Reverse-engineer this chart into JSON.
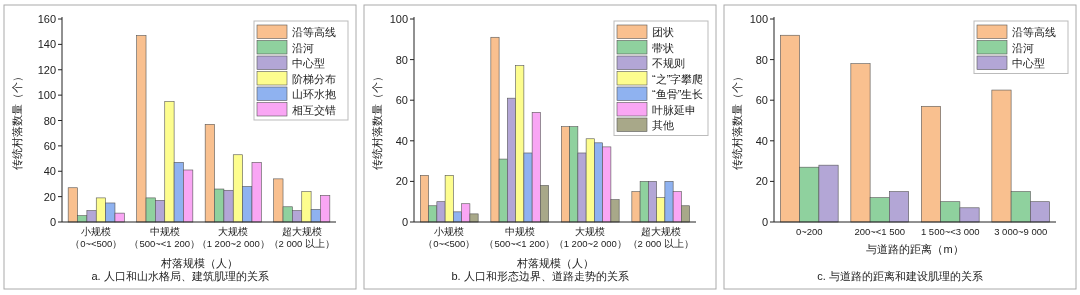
{
  "chart_data": [
    {
      "type": "bar",
      "ylabel": "传统村落数量（个）",
      "xlabel": "村落规模（人）",
      "annotations": [
        "a. 人口和山水格局、建筑肌理的关系"
      ],
      "categories": [
        "小规模（0~<500）",
        "中规模（500~<1 200）",
        "大规模（1 200~2 000）",
        "超大规模（2 000 以上）"
      ],
      "ylim": [
        0,
        160
      ],
      "yticks": [
        0,
        20,
        40,
        60,
        80,
        100,
        120,
        140,
        160
      ],
      "grid": false,
      "legend": "top right",
      "series": [
        {
          "name": "沿等高线",
          "color": "#f9c08f",
          "values": [
            27,
            147,
            77,
            34
          ]
        },
        {
          "name": "沿河",
          "color": "#8fd19e",
          "values": [
            5,
            19,
            26,
            12
          ]
        },
        {
          "name": "中心型",
          "color": "#b3a6d6",
          "values": [
            9,
            17,
            25,
            9
          ]
        },
        {
          "name": "阶梯分布",
          "color": "#fdfd8e",
          "values": [
            19,
            95,
            53,
            24
          ]
        },
        {
          "name": "山环水抱",
          "color": "#8fb2f0",
          "values": [
            15,
            47,
            28,
            10
          ]
        },
        {
          "name": "相互交错",
          "color": "#f9a6f4",
          "values": [
            7,
            41,
            47,
            21
          ]
        }
      ]
    },
    {
      "type": "bar",
      "ylabel": "传统村落数量（个）",
      "xlabel": "村落规模（人）",
      "annotations": [
        "b. 人口和形态边界、道路走势的关系"
      ],
      "categories": [
        "小规模（0~<500）",
        "中规模（500~<1 200）",
        "大规模（1 200~2 000）",
        "超大规模（2 000 以上）"
      ],
      "ylim": [
        0,
        100
      ],
      "yticks": [
        0,
        20,
        40,
        60,
        80,
        100
      ],
      "grid": false,
      "legend": "top right",
      "series": [
        {
          "name": "团状",
          "color": "#f9c08f",
          "values": [
            23,
            91,
            47,
            15
          ]
        },
        {
          "name": "带状",
          "color": "#8fd19e",
          "values": [
            8,
            31,
            47,
            20
          ]
        },
        {
          "name": "不规则",
          "color": "#b3a6d6",
          "values": [
            10,
            61,
            34,
            20
          ]
        },
        {
          "name": "“之”字攀爬",
          "color": "#fdfd8e",
          "values": [
            23,
            77,
            41,
            12
          ]
        },
        {
          "name": "“鱼骨”生长",
          "color": "#8fb2f0",
          "values": [
            5,
            34,
            39,
            20
          ]
        },
        {
          "name": "叶脉延申",
          "color": "#f9a6f4",
          "values": [
            9,
            54,
            37,
            15
          ]
        },
        {
          "name": "其他",
          "color": "#a8a889",
          "values": [
            4,
            18,
            11,
            8
          ]
        }
      ]
    },
    {
      "type": "bar",
      "ylabel": "传统村落数量（个）",
      "xlabel": "与道路的距离（m）",
      "annotations": [
        "c. 与道路的距离和建设肌理的关系"
      ],
      "categories": [
        "0~200",
        "200~<1 500",
        "1 500~<3 000",
        "3 000~9 000"
      ],
      "ylim": [
        0,
        100
      ],
      "yticks": [
        0,
        20,
        40,
        60,
        80,
        100
      ],
      "grid": false,
      "legend": "top right",
      "series": [
        {
          "name": "沿等高线",
          "color": "#f9c08f",
          "values": [
            92,
            78,
            57,
            65
          ]
        },
        {
          "name": "沿河",
          "color": "#8fd19e",
          "values": [
            27,
            12,
            10,
            15
          ]
        },
        {
          "name": "中心型",
          "color": "#b3a6d6",
          "values": [
            28,
            15,
            7,
            10
          ]
        }
      ]
    }
  ]
}
